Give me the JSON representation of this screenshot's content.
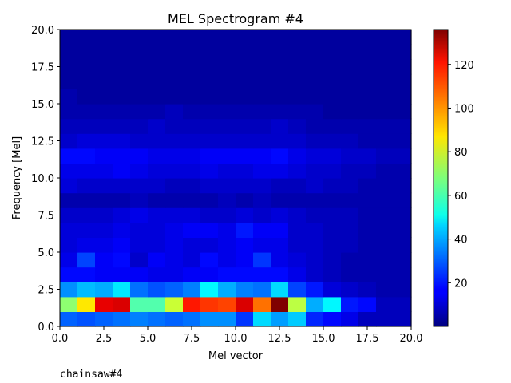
{
  "caption": "chainsaw#4",
  "chart_data": {
    "type": "heatmap",
    "title": "MEL Spectrogram #4",
    "xlabel": "Mel vector",
    "ylabel": "Frequency [Mel]",
    "xlim": [
      0,
      20
    ],
    "ylim": [
      0,
      20
    ],
    "xticks": [
      "0.0",
      "2.5",
      "5.0",
      "7.5",
      "10.0",
      "12.5",
      "15.0",
      "17.5",
      "20.0"
    ],
    "yticks": [
      "0.0",
      "2.5",
      "5.0",
      "7.5",
      "10.0",
      "12.5",
      "15.0",
      "17.5",
      "20.0"
    ],
    "colormap": "jet",
    "colorbar": {
      "vmin": 0,
      "vmax": 136,
      "ticks": [
        20,
        40,
        60,
        80,
        100,
        120
      ]
    },
    "grid": false,
    "values": [
      [
        30,
        28,
        30,
        32,
        34,
        32,
        30,
        32,
        36,
        36,
        24,
        46,
        38,
        44,
        22,
        18,
        14,
        8,
        8,
        8
      ],
      [
        70,
        88,
        122,
        124,
        62,
        62,
        78,
        116,
        112,
        110,
        124,
        104,
        136,
        76,
        40,
        50,
        20,
        18,
        8,
        8
      ],
      [
        36,
        42,
        40,
        48,
        32,
        28,
        30,
        34,
        50,
        40,
        34,
        32,
        46,
        26,
        20,
        12,
        10,
        8,
        6,
        6
      ],
      [
        18,
        18,
        16,
        16,
        16,
        14,
        14,
        16,
        16,
        18,
        18,
        18,
        18,
        14,
        10,
        8,
        6,
        6,
        6,
        6
      ],
      [
        14,
        26,
        16,
        18,
        10,
        16,
        14,
        12,
        18,
        14,
        16,
        24,
        14,
        12,
        10,
        8,
        6,
        6,
        6,
        6
      ],
      [
        12,
        14,
        14,
        16,
        12,
        12,
        14,
        12,
        12,
        14,
        16,
        14,
        14,
        10,
        10,
        8,
        8,
        6,
        6,
        6
      ],
      [
        12,
        12,
        12,
        14,
        12,
        12,
        14,
        16,
        16,
        14,
        20,
        16,
        16,
        10,
        10,
        8,
        8,
        6,
        6,
        6
      ],
      [
        10,
        10,
        10,
        12,
        14,
        12,
        12,
        12,
        10,
        10,
        12,
        10,
        12,
        10,
        8,
        8,
        8,
        6,
        6,
        6
      ],
      [
        6,
        6,
        6,
        6,
        8,
        6,
        6,
        6,
        6,
        8,
        6,
        8,
        6,
        6,
        6,
        6,
        6,
        6,
        6,
        6
      ],
      [
        12,
        10,
        10,
        10,
        10,
        10,
        8,
        8,
        10,
        10,
        10,
        10,
        8,
        8,
        10,
        8,
        8,
        6,
        6,
        6
      ],
      [
        14,
        14,
        14,
        16,
        14,
        12,
        12,
        12,
        14,
        12,
        12,
        14,
        14,
        12,
        10,
        10,
        8,
        8,
        6,
        6
      ],
      [
        18,
        18,
        16,
        16,
        16,
        14,
        14,
        14,
        16,
        16,
        16,
        16,
        18,
        14,
        12,
        12,
        10,
        10,
        8,
        8
      ],
      [
        10,
        12,
        12,
        12,
        10,
        10,
        10,
        10,
        10,
        10,
        10,
        10,
        10,
        10,
        8,
        8,
        8,
        6,
        6,
        6
      ],
      [
        8,
        8,
        8,
        8,
        8,
        10,
        8,
        8,
        8,
        8,
        8,
        8,
        10,
        8,
        6,
        6,
        6,
        6,
        6,
        6
      ],
      [
        6,
        6,
        6,
        6,
        6,
        6,
        8,
        6,
        6,
        6,
        6,
        6,
        6,
        6,
        6,
        4,
        4,
        4,
        4,
        4
      ],
      [
        6,
        4,
        4,
        4,
        4,
        4,
        4,
        4,
        4,
        4,
        4,
        4,
        4,
        4,
        4,
        4,
        4,
        4,
        4,
        4
      ],
      [
        4,
        4,
        4,
        4,
        4,
        4,
        4,
        4,
        4,
        4,
        4,
        4,
        4,
        4,
        4,
        4,
        4,
        4,
        4,
        4
      ],
      [
        4,
        4,
        4,
        4,
        4,
        4,
        4,
        4,
        4,
        4,
        4,
        4,
        4,
        4,
        4,
        4,
        4,
        4,
        4,
        4
      ],
      [
        4,
        4,
        4,
        4,
        4,
        4,
        4,
        4,
        4,
        4,
        4,
        4,
        4,
        4,
        4,
        4,
        4,
        4,
        4,
        4
      ],
      [
        4,
        4,
        4,
        4,
        4,
        4,
        4,
        4,
        4,
        4,
        4,
        4,
        4,
        4,
        4,
        4,
        4,
        4,
        4,
        4
      ]
    ]
  }
}
